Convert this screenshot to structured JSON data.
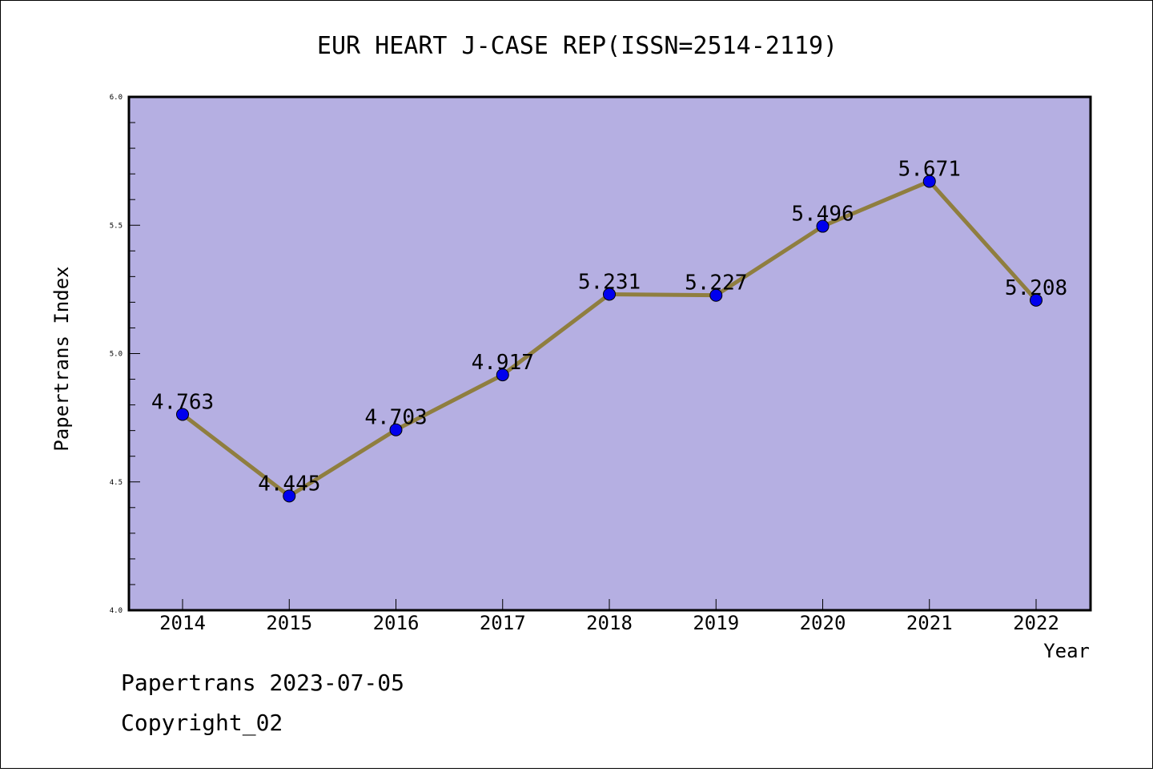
{
  "chart_data": {
    "type": "line",
    "title": "EUR HEART J-CASE REP(ISSN=2514-2119)",
    "xlabel": "Year",
    "ylabel": "Papertrans Index",
    "categories": [
      "2014",
      "2015",
      "2016",
      "2017",
      "2018",
      "2019",
      "2020",
      "2021",
      "2022"
    ],
    "series": [
      {
        "values": [
          4.763,
          4.445,
          4.703,
          4.917,
          5.231,
          5.227,
          5.496,
          5.671,
          5.208
        ],
        "labels": [
          "4.763",
          "4.445",
          "4.703",
          "4.917",
          "5.231",
          "5.227",
          "5.496",
          "5.671",
          "5.208"
        ]
      }
    ],
    "ylim": [
      4.0,
      6.0
    ],
    "yticks": [
      "4.0",
      "4.5",
      "5.0",
      "5.5",
      "6.0"
    ],
    "grid": false,
    "colors": {
      "plot_background": "#b5afe2",
      "line": "#8f7e3f",
      "marker": "#0000ee"
    }
  },
  "footer": {
    "line1": "Papertrans 2023-07-05",
    "line2": "Copyright_02"
  }
}
